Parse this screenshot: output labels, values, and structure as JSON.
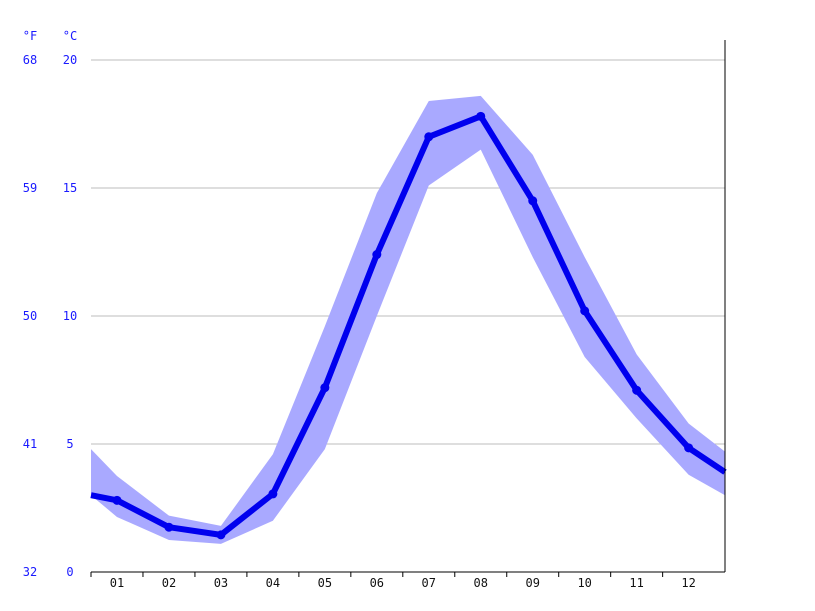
{
  "chart_data": {
    "type": "line",
    "title": "",
    "xlabel": "",
    "ylabel": "",
    "units": {
      "fahrenheit": "°F",
      "celsius": "°C"
    },
    "categories": [
      "01",
      "02",
      "03",
      "04",
      "05",
      "06",
      "07",
      "08",
      "09",
      "10",
      "11",
      "12"
    ],
    "x_edge_left": 0.5,
    "x_edge_right": 12.7,
    "ylim": [
      0,
      20
    ],
    "y_ticks_celsius": [
      0,
      5,
      10,
      15,
      20
    ],
    "y_ticks_fahrenheit": [
      "32",
      "41",
      "50",
      "59",
      "68"
    ],
    "series": [
      {
        "values": [
          3.0,
          2.8,
          1.75,
          1.45,
          3.05,
          7.2,
          12.4,
          17.0,
          17.8,
          14.5,
          10.2,
          7.1,
          4.85,
          3.9
        ],
        "x": [
          0.5,
          1.0,
          2.0,
          3.0,
          4.0,
          5.0,
          6.0,
          7.0,
          8.0,
          9.0,
          10.0,
          11.0,
          12.0,
          12.7
        ]
      }
    ],
    "band": {
      "x": [
        0.5,
        1.0,
        2.0,
        3.0,
        4.0,
        5.0,
        6.0,
        7.0,
        8.0,
        9.0,
        10.0,
        11.0,
        12.0,
        12.7
      ],
      "upper": [
        4.8,
        3.75,
        2.2,
        1.8,
        4.6,
        9.6,
        14.8,
        18.4,
        18.6,
        16.3,
        12.3,
        8.5,
        5.8,
        4.7
      ],
      "lower": [
        3.0,
        2.15,
        1.25,
        1.1,
        2.0,
        4.8,
        10.0,
        15.1,
        16.5,
        12.3,
        8.4,
        6.0,
        3.8,
        3.0
      ]
    },
    "colors": {
      "line": "#0000ee",
      "band": "#a9a9ff",
      "tick_text_y": "#1a1aff",
      "tick_text_x": "#111111"
    },
    "grid": true
  }
}
